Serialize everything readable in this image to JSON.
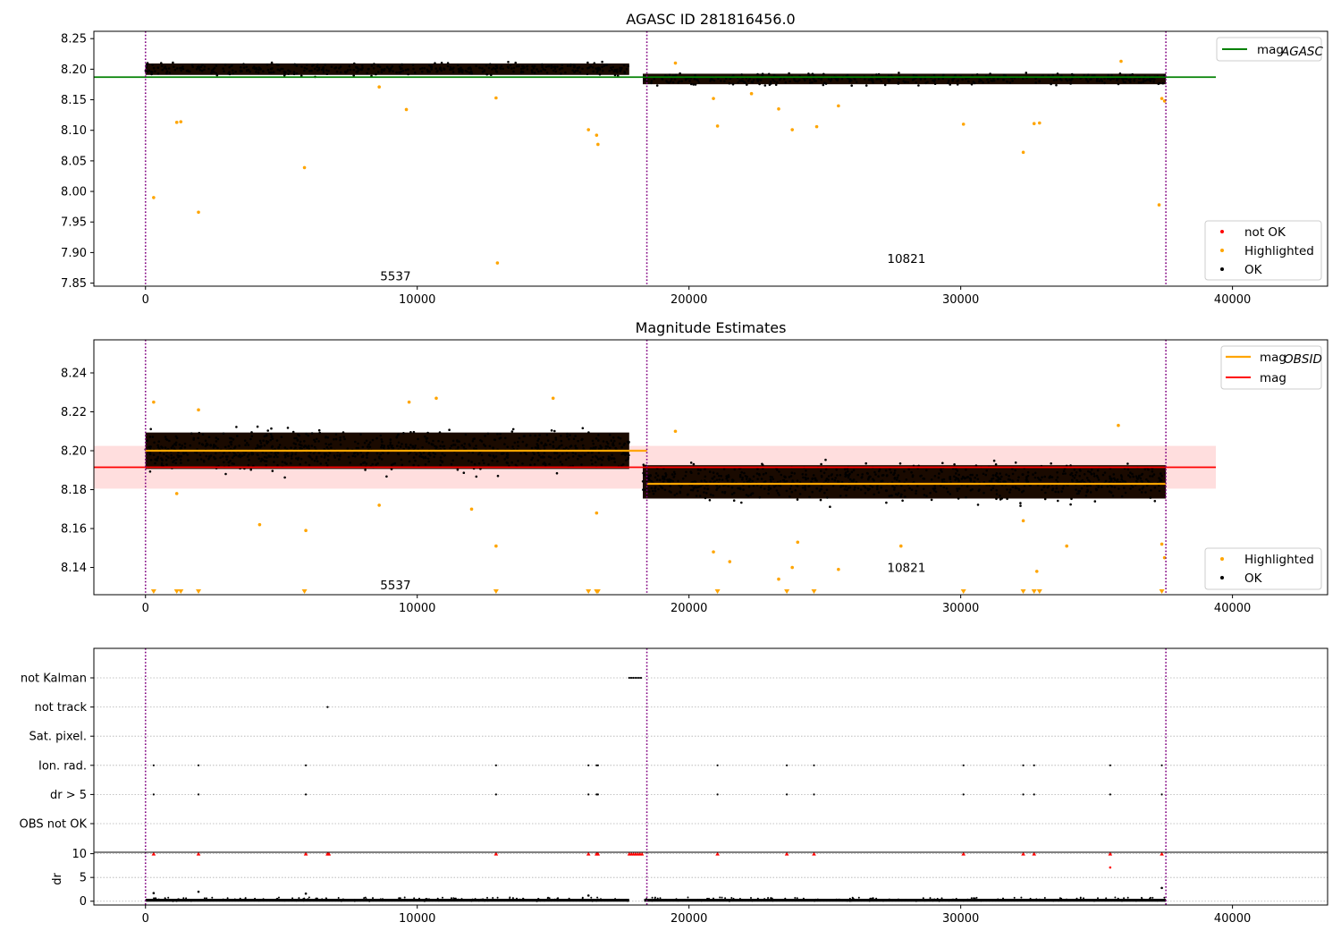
{
  "chart_data": [
    {
      "type": "scatter",
      "title": "AGASC ID 281816456.0",
      "xlim": [
        -1900,
        43500
      ],
      "ylim": [
        7.845,
        8.262
      ],
      "x_ticks": [
        "0",
        "10000",
        "20000",
        "30000",
        "40000"
      ],
      "y_ticks": [
        "7.85",
        "7.90",
        "7.95",
        "8.00",
        "8.05",
        "8.10",
        "8.15",
        "8.20",
        "8.25"
      ],
      "obsid_boundaries": [
        0,
        18450,
        37550
      ],
      "obsid_labels": [
        {
          "text": "5537",
          "x": 9200,
          "y": 7.862
        },
        {
          "text": "10821",
          "x": 28000,
          "y": 7.89
        }
      ],
      "series": [
        {
          "name": "not OK",
          "color": "#ff0000",
          "values": []
        },
        {
          "name": "Highlighted",
          "color": "#ffa500",
          "points": [
            [
              300,
              7.99
            ],
            [
              1150,
              8.113
            ],
            [
              1300,
              8.114
            ],
            [
              1950,
              7.966
            ],
            [
              5850,
              8.039
            ],
            [
              8600,
              8.171
            ],
            [
              9600,
              8.134
            ],
            [
              12900,
              8.153
            ],
            [
              12950,
              7.883
            ],
            [
              16300,
              8.101
            ],
            [
              16600,
              8.092
            ],
            [
              16650,
              8.077
            ],
            [
              19500,
              8.21
            ],
            [
              20900,
              8.152
            ],
            [
              21050,
              8.107
            ],
            [
              22300,
              8.16
            ],
            [
              23300,
              8.135
            ],
            [
              23800,
              8.101
            ],
            [
              24700,
              8.106
            ],
            [
              25500,
              8.14
            ],
            [
              30100,
              8.11
            ],
            [
              32300,
              8.064
            ],
            [
              32700,
              8.111
            ],
            [
              32900,
              8.112
            ],
            [
              35900,
              8.213
            ],
            [
              37300,
              7.978
            ],
            [
              37400,
              8.152
            ],
            [
              37500,
              8.148
            ]
          ]
        },
        {
          "name": "OK",
          "color": "#000000",
          "bands": [
            {
              "x_start": 0,
              "x_end": 17800,
              "center": 8.2,
              "half_width": 0.012
            },
            {
              "x_start": 18300,
              "x_end": 37550,
              "center": 8.184,
              "half_width": 0.011
            }
          ]
        }
      ],
      "reference_lines": [
        {
          "name": "mag_AGASC",
          "value": 8.187,
          "color": "#008000"
        }
      ],
      "legend": {
        "upper_right": [
          "mag_AGASC"
        ],
        "lower_right": [
          "not OK",
          "Highlighted",
          "OK"
        ]
      },
      "grid": false
    },
    {
      "type": "scatter",
      "title": "Magnitude Estimates",
      "xlim": [
        -1900,
        43500
      ],
      "ylim": [
        8.126,
        8.257
      ],
      "x_ticks": [
        "0",
        "10000",
        "20000",
        "30000",
        "40000"
      ],
      "y_ticks": [
        "8.14",
        "8.16",
        "8.18",
        "8.20",
        "8.22",
        "8.24"
      ],
      "obsid_boundaries": [
        0,
        18450,
        37550
      ],
      "obsid_labels": [
        {
          "text": "5537",
          "x": 9200,
          "y": 8.131
        },
        {
          "text": "10821",
          "x": 28000,
          "y": 8.14
        }
      ],
      "series": [
        {
          "name": "Highlighted",
          "color": "#ffa500",
          "points": [
            [
              300,
              8.225
            ],
            [
              1150,
              8.178
            ],
            [
              1950,
              8.221
            ],
            [
              4200,
              8.162
            ],
            [
              5900,
              8.159
            ],
            [
              8600,
              8.172
            ],
            [
              9700,
              8.225
            ],
            [
              10700,
              8.227
            ],
            [
              12000,
              8.17
            ],
            [
              12900,
              8.151
            ],
            [
              15000,
              8.227
            ],
            [
              16600,
              8.168
            ],
            [
              19500,
              8.21
            ],
            [
              20900,
              8.148
            ],
            [
              21500,
              8.143
            ],
            [
              23300,
              8.134
            ],
            [
              23800,
              8.14
            ],
            [
              24000,
              8.153
            ],
            [
              25500,
              8.139
            ],
            [
              27800,
              8.151
            ],
            [
              32300,
              8.164
            ],
            [
              32800,
              8.138
            ],
            [
              33900,
              8.151
            ],
            [
              35800,
              8.213
            ],
            [
              37400,
              8.152
            ],
            [
              37500,
              8.145
            ]
          ]
        },
        {
          "name": "OK",
          "color": "#000000",
          "bands": [
            {
              "x_start": 0,
              "x_end": 17800,
              "center": 8.2,
              "half_width": 0.012
            },
            {
              "x_start": 18300,
              "x_end": 37550,
              "center": 8.184,
              "half_width": 0.011
            }
          ]
        }
      ],
      "lower_markers": [
        300,
        1150,
        1300,
        1950,
        5850,
        12900,
        16300,
        16600,
        16650,
        21050,
        23600,
        24600,
        30100,
        32300,
        32700,
        32900,
        37400
      ],
      "obsid_levels": [
        {
          "name": "mag_OBSID",
          "x_start": 0,
          "x_end": 18450,
          "value": 8.2,
          "color": "#ffa500"
        },
        {
          "name": "mag_OBSID",
          "x_start": 18450,
          "x_end": 37550,
          "value": 8.183,
          "color": "#ffa500"
        }
      ],
      "reference_lines": [
        {
          "name": "mag",
          "value": 8.1915,
          "band": [
            8.1805,
            8.2025
          ],
          "color": "#ff0000"
        }
      ],
      "legend": {
        "upper_right": [
          "mag_OBSID",
          "mag"
        ],
        "lower_right": [
          "Highlighted",
          "OK"
        ]
      },
      "grid": false
    },
    {
      "type": "scatter",
      "title": "",
      "xlim": [
        -1900,
        43500
      ],
      "x_ticks": [
        "0",
        "10000",
        "20000",
        "30000",
        "40000"
      ],
      "flag_rows": [
        "not Kalman",
        "not track",
        "Sat. pixel.",
        "Ion. rad.",
        "dr > 5",
        "OBS not OK"
      ],
      "flag_points": {
        "not Kalman": [
          [
            17800,
            18300
          ]
        ],
        "not track": [
          [
            6700,
            6720
          ]
        ],
        "Sat. pixel.": [],
        "Ion. rad.": [
          [
            300
          ],
          [
            1950
          ],
          [
            5900
          ],
          [
            12900
          ],
          [
            16300
          ],
          [
            16600
          ],
          [
            16650
          ],
          [
            21050
          ],
          [
            23600
          ],
          [
            24600
          ],
          [
            30100
          ],
          [
            32300
          ],
          [
            32700
          ],
          [
            35500
          ],
          [
            37400
          ]
        ],
        "dr > 5": [
          [
            300
          ],
          [
            1950
          ],
          [
            5900
          ],
          [
            12900
          ],
          [
            16300
          ],
          [
            16600
          ],
          [
            16650
          ],
          [
            21050
          ],
          [
            23600
          ],
          [
            24600
          ],
          [
            30100
          ],
          [
            32300
          ],
          [
            32700
          ],
          [
            35500
          ],
          [
            37400
          ]
        ],
        "OBS not OK": []
      },
      "dr_panel": {
        "ylabel": "dr",
        "y_ticks": [
          "0",
          "5",
          "10"
        ],
        "ylim": [
          -0.8,
          10.3
        ],
        "clipped_marker_x": [
          300,
          1950,
          5900,
          6700,
          6750,
          12900,
          16300,
          16600,
          16650,
          21050,
          23600,
          24600,
          30100,
          32300,
          32700,
          35500,
          37400
        ],
        "clipped_band": [
          17800,
          18350
        ],
        "mid_points": [
          [
            300,
            1.7
          ],
          [
            1950,
            2.0
          ],
          [
            5900,
            1.6
          ],
          [
            16300,
            1.2
          ],
          [
            35500,
            7.1
          ],
          [
            37400,
            2.8
          ]
        ]
      },
      "obsid_boundaries": [
        0,
        18450,
        37550
      ]
    }
  ]
}
